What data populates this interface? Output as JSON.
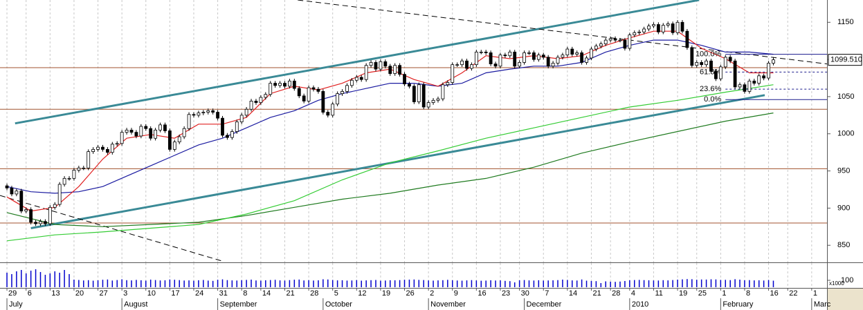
{
  "chart_data": {
    "type": "candlestick",
    "xlim": [
      -1.45,
      171.2
    ],
    "ylim": [
      827,
      1180
    ],
    "yticks": [
      850,
      900,
      950,
      1000,
      1050,
      1100,
      1150
    ],
    "grid": true,
    "xticks": [
      {
        "value": 0,
        "label": "29"
      },
      {
        "value": 4,
        "label": "6"
      },
      {
        "value": 9,
        "label": "13"
      },
      {
        "value": 14,
        "label": "20"
      },
      {
        "value": 19,
        "label": "27"
      },
      {
        "value": 24,
        "label": "3"
      },
      {
        "value": 29,
        "label": "10"
      },
      {
        "value": 34,
        "label": "17"
      },
      {
        "value": 39,
        "label": "24"
      },
      {
        "value": 44,
        "label": "31"
      },
      {
        "value": 49,
        "label": "8"
      },
      {
        "value": 53,
        "label": "14"
      },
      {
        "value": 58,
        "label": "21"
      },
      {
        "value": 63,
        "label": "28"
      },
      {
        "value": 68,
        "label": "5"
      },
      {
        "value": 73,
        "label": "12"
      },
      {
        "value": 78,
        "label": "19"
      },
      {
        "value": 83,
        "label": "26"
      },
      {
        "value": 88,
        "label": "2"
      },
      {
        "value": 93,
        "label": "9"
      },
      {
        "value": 98,
        "label": "16"
      },
      {
        "value": 103,
        "label": "23"
      },
      {
        "value": 107,
        "label": "30"
      },
      {
        "value": 112,
        "label": "7"
      },
      {
        "value": 117,
        "label": "14"
      },
      {
        "value": 122,
        "label": "21"
      },
      {
        "value": 126,
        "label": "28"
      },
      {
        "value": 130,
        "label": "4"
      },
      {
        "value": 135,
        "label": "11"
      },
      {
        "value": 140,
        "label": "19"
      },
      {
        "value": 144,
        "label": "25"
      },
      {
        "value": 149,
        "label": "1"
      },
      {
        "value": 154,
        "label": "8"
      },
      {
        "value": 159,
        "label": "16"
      },
      {
        "value": 163,
        "label": "22"
      },
      {
        "value": 168,
        "label": "1"
      }
    ],
    "months": [
      {
        "value": 0,
        "label": "July"
      },
      {
        "value": 24,
        "label": "August"
      },
      {
        "value": 44,
        "label": "September"
      },
      {
        "value": 66,
        "label": "October"
      },
      {
        "value": 88,
        "label": "November"
      },
      {
        "value": 108,
        "label": "December"
      },
      {
        "value": 130,
        "label": "2010"
      },
      {
        "value": 149,
        "label": "February"
      },
      {
        "value": 168,
        "label": "Marc"
      }
    ],
    "open": [
      930,
      927,
      919,
      923,
      896,
      898,
      881,
      879,
      882,
      879,
      901,
      905,
      932,
      940,
      940,
      951,
      954,
      954,
      976,
      979,
      982,
      979,
      975,
      986,
      987,
      1002,
      1005,
      1002,
      997,
      1010,
      1007,
      994,
      1005,
      1012,
      1004,
      979,
      989,
      996,
      1007,
      1026,
      1025,
      1028,
      1029,
      1031,
      1029,
      1021,
      998,
      995,
      1003,
      1016,
      1025,
      1033,
      1044,
      1042,
      1049,
      1053,
      1068,
      1065,
      1068,
      1064,
      1071,
      1061,
      1051,
      1044,
      1062,
      1060,
      1057,
      1029,
      1025,
      1040,
      1054,
      1057,
      1065,
      1072,
      1076,
      1073,
      1092,
      1096,
      1087,
      1097,
      1091,
      1081,
      1092,
      1080,
      1067,
      1064,
      1043,
      1066,
      1036,
      1042,
      1045,
      1047,
      1066,
      1069,
      1093,
      1093,
      1098,
      1088,
      1093,
      1110,
      1110,
      1109,
      1094,
      1091,
      1106,
      1105,
      1110,
      1091,
      1096,
      1109,
      1109,
      1100,
      1106,
      1103,
      1091,
      1095,
      1103,
      1106,
      1114,
      1107,
      1109,
      1096,
      1102,
      1114,
      1118,
      1121,
      1126,
      1128,
      1126,
      1126,
      1115,
      1133,
      1136,
      1137,
      1141,
      1145,
      1147,
      1137,
      1146,
      1148,
      1136,
      1150,
      1138,
      1116,
      1092,
      1096,
      1093,
      1098,
      1084,
      1074,
      1090,
      1103,
      1098,
      1063,
      1066,
      1057,
      1071,
      1068,
      1078,
      1075,
      1095
    ],
    "high": [
      933,
      930,
      926,
      926,
      901,
      901,
      884,
      885,
      885,
      904,
      908,
      935,
      943,
      943,
      954,
      957,
      957,
      979,
      982,
      985,
      985,
      982,
      989,
      990,
      1005,
      1008,
      1008,
      1005,
      1013,
      1013,
      1010,
      1008,
      1015,
      1015,
      1007,
      992,
      999,
      1010,
      1029,
      1029,
      1031,
      1032,
      1034,
      1034,
      1032,
      1024,
      1001,
      1006,
      1019,
      1028,
      1036,
      1047,
      1047,
      1052,
      1056,
      1071,
      1071,
      1071,
      1071,
      1074,
      1074,
      1064,
      1054,
      1065,
      1065,
      1063,
      1060,
      1032,
      1043,
      1057,
      1060,
      1068,
      1075,
      1079,
      1079,
      1095,
      1099,
      1099,
      1100,
      1100,
      1094,
      1095,
      1095,
      1083,
      1070,
      1067,
      1069,
      1069,
      1045,
      1048,
      1050,
      1069,
      1072,
      1096,
      1096,
      1101,
      1101,
      1096,
      1113,
      1113,
      1113,
      1112,
      1097,
      1109,
      1109,
      1113,
      1113,
      1099,
      1112,
      1112,
      1112,
      1109,
      1109,
      1106,
      1098,
      1106,
      1109,
      1117,
      1117,
      1112,
      1112,
      1105,
      1117,
      1121,
      1124,
      1129,
      1131,
      1131,
      1129,
      1129,
      1136,
      1139,
      1140,
      1144,
      1148,
      1150,
      1150,
      1149,
      1151,
      1151,
      1153,
      1153,
      1141,
      1119,
      1099,
      1099,
      1101,
      1101,
      1087,
      1093,
      1106,
      1106,
      1101,
      1069,
      1069,
      1074,
      1074,
      1081,
      1081,
      1098,
      1103
    ],
    "low": [
      924,
      916,
      916,
      893,
      893,
      878,
      876,
      876,
      876,
      876,
      898,
      902,
      929,
      937,
      937,
      948,
      951,
      951,
      973,
      976,
      976,
      972,
      972,
      983,
      984,
      999,
      999,
      994,
      994,
      1004,
      991,
      991,
      1002,
      1001,
      976,
      976,
      986,
      993,
      1004,
      1022,
      1022,
      1025,
      1026,
      1026,
      1018,
      995,
      992,
      992,
      1000,
      1013,
      1022,
      1030,
      1039,
      1039,
      1046,
      1050,
      1062,
      1062,
      1061,
      1061,
      1058,
      1048,
      1041,
      1041,
      1057,
      1054,
      1026,
      1022,
      1022,
      1037,
      1051,
      1054,
      1062,
      1069,
      1070,
      1070,
      1089,
      1084,
      1084,
      1088,
      1078,
      1078,
      1077,
      1064,
      1061,
      1040,
      1040,
      1033,
      1033,
      1039,
      1042,
      1044,
      1063,
      1066,
      1090,
      1090,
      1085,
      1085,
      1090,
      1107,
      1106,
      1091,
      1088,
      1088,
      1102,
      1102,
      1088,
      1088,
      1093,
      1106,
      1097,
      1097,
      1100,
      1088,
      1088,
      1092,
      1100,
      1103,
      1104,
      1104,
      1093,
      1093,
      1099,
      1111,
      1115,
      1118,
      1123,
      1123,
      1123,
      1112,
      1112,
      1130,
      1133,
      1134,
      1138,
      1142,
      1134,
      1134,
      1143,
      1133,
      1133,
      1135,
      1113,
      1089,
      1089,
      1090,
      1090,
      1081,
      1071,
      1071,
      1087,
      1095,
      1060,
      1060,
      1054,
      1054,
      1065,
      1065,
      1072,
      1072,
      1092
    ],
    "close": [
      927,
      919,
      923,
      896,
      898,
      881,
      879,
      882,
      879,
      901,
      905,
      932,
      940,
      940,
      951,
      954,
      954,
      976,
      979,
      982,
      979,
      975,
      986,
      987,
      1002,
      1005,
      1002,
      997,
      1010,
      1007,
      994,
      1005,
      1012,
      1004,
      979,
      989,
      996,
      1007,
      1026,
      1025,
      1028,
      1029,
      1031,
      1029,
      1021,
      998,
      995,
      1003,
      1016,
      1025,
      1033,
      1044,
      1042,
      1049,
      1053,
      1068,
      1065,
      1068,
      1064,
      1071,
      1061,
      1051,
      1044,
      1062,
      1060,
      1057,
      1029,
      1025,
      1040,
      1054,
      1057,
      1065,
      1072,
      1076,
      1073,
      1092,
      1096,
      1087,
      1097,
      1091,
      1081,
      1092,
      1080,
      1067,
      1064,
      1043,
      1066,
      1036,
      1042,
      1045,
      1047,
      1066,
      1069,
      1093,
      1093,
      1098,
      1088,
      1093,
      1110,
      1110,
      1109,
      1094,
      1091,
      1106,
      1105,
      1110,
      1091,
      1096,
      1109,
      1109,
      1100,
      1106,
      1103,
      1091,
      1095,
      1103,
      1106,
      1114,
      1107,
      1109,
      1096,
      1102,
      1114,
      1118,
      1121,
      1126,
      1128,
      1126,
      1126,
      1115,
      1133,
      1136,
      1137,
      1141,
      1145,
      1147,
      1137,
      1146,
      1148,
      1136,
      1150,
      1138,
      1116,
      1092,
      1096,
      1093,
      1098,
      1084,
      1074,
      1090,
      1103,
      1098,
      1063,
      1066,
      1057,
      1071,
      1068,
      1078,
      1075,
      1095,
      1099.51
    ],
    "last_price": {
      "value": 1099.51,
      "label": "1099.510"
    },
    "series": [
      {
        "color": "#1e7a1e",
        "x": [
          0,
          10,
          20,
          30,
          40,
          50,
          60,
          70,
          80,
          90,
          100,
          110,
          120,
          130,
          140,
          150,
          160
        ],
        "values": [
          894,
          878,
          875,
          878,
          881,
          890,
          901,
          912,
          920,
          931,
          940,
          955,
          974,
          989,
          1003,
          1017,
          1028
        ]
      },
      {
        "color": "#33cc33",
        "x": [
          0,
          10,
          20,
          30,
          40,
          50,
          60,
          70,
          80,
          90,
          100,
          110,
          120,
          130,
          140,
          150,
          160
        ],
        "values": [
          856,
          864,
          868,
          873,
          878,
          892,
          910,
          938,
          961,
          977,
          994,
          1008,
          1022,
          1036,
          1045,
          1056,
          1066
        ]
      },
      {
        "color": "#1a1aa0",
        "x": [
          0,
          5,
          10,
          15,
          20,
          25,
          30,
          35,
          40,
          45,
          50,
          55,
          60,
          65,
          70,
          75,
          80,
          85,
          90,
          95,
          100,
          105,
          110,
          115,
          120,
          125,
          130,
          135,
          140,
          145,
          150,
          155,
          160
        ],
        "values": [
          929,
          922,
          920,
          922,
          929,
          943,
          957,
          971,
          985,
          994,
          1008,
          1022,
          1031,
          1045,
          1054,
          1061,
          1068,
          1068,
          1064,
          1068,
          1082,
          1087,
          1091,
          1091,
          1096,
          1110,
          1119,
          1126,
          1126,
          1119,
          1110,
          1110,
          1107
        ]
      },
      {
        "color": "#e02020",
        "x": [
          0,
          5,
          10,
          15,
          20,
          25,
          30,
          35,
          40,
          45,
          50,
          55,
          60,
          65,
          70,
          75,
          80,
          85,
          90,
          95,
          100,
          105,
          110,
          115,
          120,
          125,
          130,
          135,
          140,
          145,
          150,
          155,
          160
        ],
        "values": [
          915,
          896,
          901,
          929,
          966,
          994,
          999,
          994,
          1013,
          1013,
          1022,
          1054,
          1064,
          1059,
          1068,
          1082,
          1087,
          1073,
          1064,
          1082,
          1105,
          1101,
          1105,
          1101,
          1105,
          1119,
          1129,
          1138,
          1138,
          1115,
          1101,
          1082,
          1082
        ]
      }
    ],
    "horizontal_lines": {
      "color": "#a0522d",
      "values": [
        1089,
        1033,
        953,
        880
      ]
    },
    "trend_lines": [
      {
        "color": "#3a8a96",
        "dash": false,
        "x": [
          1.7,
          144.5
        ],
        "y": [
          1014,
          1180
        ]
      },
      {
        "color": "#3a8a96",
        "dash": false,
        "x": [
          5,
          158.2
        ],
        "y": [
          873,
          1052
        ]
      },
      {
        "color": "#000000",
        "dash": true,
        "x": [
          -1.45,
          44.8
        ],
        "y": [
          917,
          829
        ]
      },
      {
        "color": "#000000",
        "dash": true,
        "x": [
          60.7,
          171.2
        ],
        "y": [
          1180,
          1094
        ]
      }
    ],
    "fibonacci": {
      "color": "#1a1a8c",
      "x_start": 150,
      "levels": [
        {
          "value": 1107,
          "label": "100.0%",
          "dash": false
        },
        {
          "value": 1083,
          "label": "61.8%",
          "dash": true
        },
        {
          "value": 1060,
          "label": "23.6%",
          "dash": true
        },
        {
          "value": 1046,
          "label": "0.0%",
          "dash": false
        }
      ]
    },
    "volume": {
      "color": "#0000cc",
      "ylim": [
        0,
        330
      ],
      "yticks": [
        100
      ],
      "unit": "x1000",
      "values": [
        210,
        190,
        230,
        250,
        200,
        240,
        260,
        220,
        180,
        200,
        230,
        210,
        250,
        190,
        110,
        105,
        98,
        102,
        95,
        100,
        108,
        112,
        97,
        104,
        115,
        102,
        99,
        106,
        101,
        95,
        110,
        104,
        98,
        100,
        112,
        108,
        103,
        97,
        99,
        94,
        101,
        105,
        96,
        92,
        108,
        114,
        103,
        99,
        97,
        102,
        106,
        110,
        98,
        95,
        101,
        104,
        107,
        99,
        96,
        103,
        109,
        111,
        98,
        102,
        97,
        100,
        115,
        112,
        104,
        99,
        101,
        96,
        98,
        103,
        95,
        99,
        102,
        105,
        94,
        97,
        101,
        100,
        103,
        108,
        110,
        112,
        106,
        104,
        98,
        96,
        99,
        102,
        107,
        101,
        97,
        95,
        99,
        103,
        98,
        94,
        96,
        101,
        97,
        99,
        92,
        88,
        70,
        100,
        104,
        99,
        97,
        101,
        96,
        98,
        100,
        103,
        110,
        105,
        99,
        97,
        112,
        95,
        90,
        88,
        60,
        85,
        80,
        78,
        82,
        90,
        101,
        104,
        106,
        103,
        100,
        98,
        97,
        102,
        99,
        104,
        110,
        114,
        118,
        116,
        108,
        112,
        111,
        115,
        113,
        105,
        107,
        103,
        116,
        110,
        101,
        103,
        99,
        100,
        97,
        104,
        95
      ]
    }
  }
}
